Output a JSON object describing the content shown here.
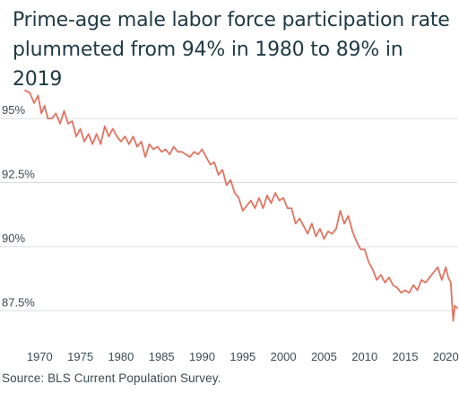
{
  "title": "Prime-age male labor force participation rate plummeted from 94% in 1980 to 89% in 2019",
  "source": "Source: BLS Current Population Survey.",
  "colors": {
    "line": "#e07461",
    "grid": "#d9dde0",
    "title": "#1f3a45",
    "axis_text": "#3b4b55"
  },
  "chart_data": {
    "type": "line",
    "title": "Prime-age male labor force participation rate plummeted from 94% in 1980 to 89% in 2019",
    "xlabel": "",
    "ylabel": "",
    "xlim": [
      1968.2,
      2021.4
    ],
    "ylim": [
      86.6,
      96.3
    ],
    "grid": "horizontal",
    "legend": "none",
    "y_ticks": [
      87.5,
      90,
      92.5,
      95
    ],
    "y_tick_labels": [
      "87.5%",
      "90%",
      "92.5%",
      "95%"
    ],
    "x_ticks": [
      1970,
      1975,
      1980,
      1985,
      1990,
      1995,
      2000,
      2005,
      2010,
      2015,
      2020
    ],
    "x_tick_labels": [
      "1970",
      "1975",
      "1980",
      "1985",
      "1990",
      "1995",
      "2000",
      "2005",
      "2010",
      "2015",
      "2020"
    ],
    "series": [
      {
        "name": "",
        "x": [
          1968.2,
          1968.8,
          1969.3,
          1969.8,
          1970.2,
          1970.6,
          1971.0,
          1971.5,
          1972.0,
          1972.5,
          1973.0,
          1973.5,
          1974.0,
          1974.5,
          1975.0,
          1975.5,
          1976.0,
          1976.5,
          1977.0,
          1977.5,
          1978.0,
          1978.5,
          1979.0,
          1979.5,
          1980.0,
          1980.5,
          1981.0,
          1981.5,
          1982.0,
          1982.5,
          1983.0,
          1983.5,
          1984.0,
          1984.5,
          1985.0,
          1985.5,
          1986.0,
          1986.5,
          1987.0,
          1987.5,
          1988.0,
          1988.5,
          1989.0,
          1989.5,
          1990.0,
          1990.5,
          1991.0,
          1991.5,
          1992.0,
          1992.5,
          1993.0,
          1993.5,
          1994.0,
          1994.5,
          1995.0,
          1995.5,
          1996.0,
          1996.5,
          1997.0,
          1997.5,
          1998.0,
          1998.5,
          1999.0,
          1999.5,
          2000.0,
          2000.5,
          2001.0,
          2001.5,
          2002.0,
          2002.5,
          2003.0,
          2003.5,
          2004.0,
          2004.5,
          2005.0,
          2005.5,
          2006.0,
          2006.5,
          2007.0,
          2007.5,
          2008.0,
          2008.5,
          2009.0,
          2009.5,
          2010.0,
          2010.5,
          2011.0,
          2011.5,
          2012.0,
          2012.5,
          2013.0,
          2013.5,
          2014.0,
          2014.5,
          2015.0,
          2015.5,
          2016.0,
          2016.5,
          2017.0,
          2017.5,
          2018.0,
          2018.5,
          2019.0,
          2019.5,
          2020.0,
          2020.3,
          2020.6,
          2020.9,
          2021.1,
          2021.4
        ],
        "values": [
          96.1,
          96.0,
          95.6,
          95.9,
          95.2,
          95.5,
          95.0,
          95.0,
          95.2,
          94.8,
          95.3,
          94.8,
          94.9,
          94.3,
          94.6,
          94.1,
          94.4,
          94.0,
          94.4,
          94.0,
          94.7,
          94.3,
          94.6,
          94.3,
          94.1,
          94.3,
          94.0,
          94.3,
          93.9,
          94.1,
          93.5,
          94.0,
          93.8,
          93.9,
          93.7,
          93.8,
          93.6,
          93.9,
          93.7,
          93.7,
          93.6,
          93.5,
          93.7,
          93.6,
          93.8,
          93.5,
          93.2,
          93.3,
          92.8,
          93.0,
          92.4,
          92.6,
          92.1,
          91.9,
          91.4,
          91.6,
          91.8,
          91.5,
          91.9,
          91.5,
          92.0,
          91.7,
          92.1,
          91.8,
          91.9,
          91.5,
          91.5,
          90.9,
          91.1,
          90.8,
          90.5,
          90.9,
          90.4,
          90.7,
          90.3,
          90.6,
          90.5,
          90.7,
          91.4,
          90.9,
          91.2,
          90.6,
          90.2,
          89.9,
          89.9,
          89.4,
          89.1,
          88.7,
          88.9,
          88.6,
          88.8,
          88.5,
          88.4,
          88.2,
          88.3,
          88.2,
          88.5,
          88.3,
          88.7,
          88.6,
          88.8,
          89.0,
          89.2,
          88.7,
          89.2,
          88.8,
          88.6,
          87.1,
          87.7,
          87.6
        ]
      }
    ]
  }
}
